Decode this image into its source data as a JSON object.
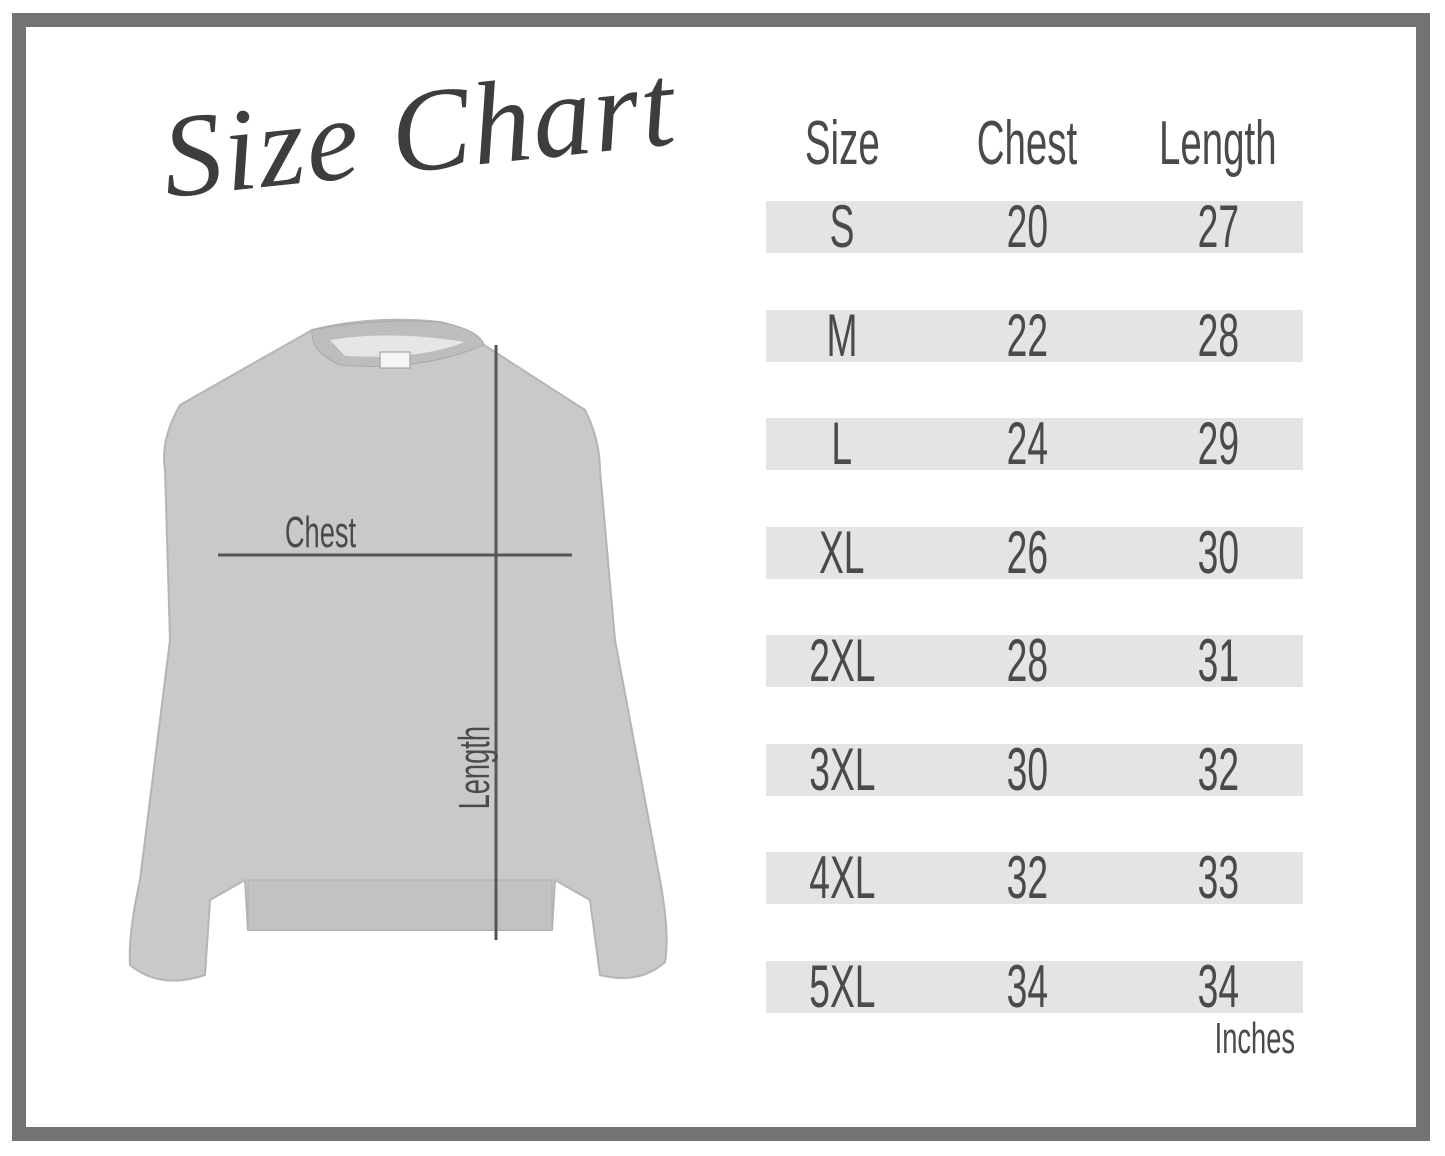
{
  "title": "Size Chart",
  "table": {
    "headers": [
      "Size",
      "Chest",
      "Length"
    ],
    "rows": [
      [
        "S",
        "20",
        "27"
      ],
      [
        "M",
        "22",
        "28"
      ],
      [
        "L",
        "24",
        "29"
      ],
      [
        "XL",
        "26",
        "30"
      ],
      [
        "2XL",
        "28",
        "31"
      ],
      [
        "3XL",
        "30",
        "32"
      ],
      [
        "4XL",
        "32",
        "33"
      ],
      [
        "5XL",
        "34",
        "34"
      ]
    ],
    "unit": "Inches"
  },
  "diagram": {
    "chest_label": "Chest",
    "length_label": "Length"
  },
  "colors": {
    "border": "#737373",
    "row_stripe": "#e4e4e4",
    "text": "#4a4a4a",
    "garment": "#c9c9c7"
  }
}
